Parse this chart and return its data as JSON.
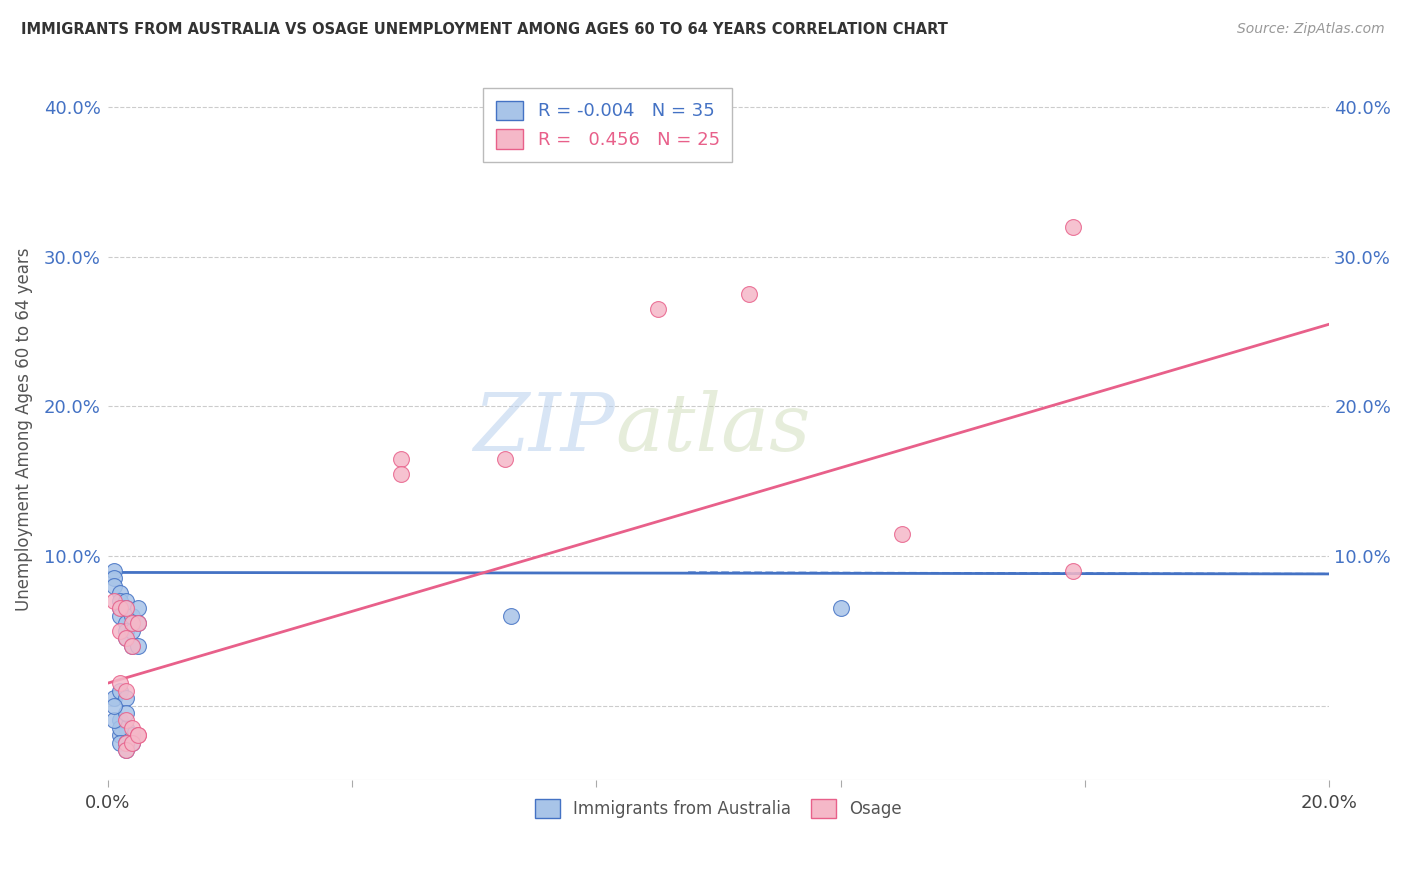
{
  "title": "IMMIGRANTS FROM AUSTRALIA VS OSAGE UNEMPLOYMENT AMONG AGES 60 TO 64 YEARS CORRELATION CHART",
  "source": "Source: ZipAtlas.com",
  "ylabel": "Unemployment Among Ages 60 to 64 years",
  "xlim": [
    0.0,
    0.2
  ],
  "ylim": [
    -0.05,
    0.42
  ],
  "xticks": [
    0.0,
    0.04,
    0.08,
    0.12,
    0.16,
    0.2
  ],
  "yticks": [
    0.0,
    0.1,
    0.2,
    0.3,
    0.4
  ],
  "xtick_labels": [
    "0.0%",
    "",
    "",
    "",
    "",
    "20.0%"
  ],
  "ytick_labels": [
    "",
    "10.0%",
    "20.0%",
    "30.0%",
    "40.0%"
  ],
  "legend_r_blue": "-0.004",
  "legend_n_blue": "35",
  "legend_r_pink": "0.456",
  "legend_n_pink": "25",
  "watermark_zip": "ZIP",
  "watermark_atlas": "atlas",
  "blue_scatter_color": "#a8c4e8",
  "blue_edge_color": "#4472c4",
  "pink_scatter_color": "#f5b8c8",
  "pink_edge_color": "#e8608a",
  "blue_line_color": "#4472c4",
  "pink_line_color": "#e8608a",
  "background_color": "#ffffff",
  "grid_color": "#cccccc",
  "blue_scatter_x": [
    0.001,
    0.001,
    0.001,
    0.002,
    0.002,
    0.002,
    0.002,
    0.003,
    0.003,
    0.003,
    0.003,
    0.003,
    0.004,
    0.004,
    0.004,
    0.005,
    0.005,
    0.005,
    0.001,
    0.002,
    0.002,
    0.003,
    0.003,
    0.004,
    0.004,
    0.002,
    0.002,
    0.001,
    0.003,
    0.001,
    0.002,
    0.003,
    0.003,
    0.066,
    0.12
  ],
  "blue_scatter_y": [
    0.09,
    0.085,
    0.08,
    0.075,
    0.07,
    0.065,
    0.06,
    0.07,
    0.065,
    0.055,
    0.05,
    0.045,
    0.06,
    0.05,
    0.04,
    0.065,
    0.055,
    0.04,
    0.005,
    0.01,
    -0.01,
    0.005,
    -0.015,
    -0.02,
    -0.025,
    -0.02,
    -0.015,
    -0.01,
    -0.005,
    0.0,
    -0.025,
    -0.025,
    -0.03,
    0.06,
    0.065
  ],
  "pink_scatter_x": [
    0.001,
    0.002,
    0.002,
    0.003,
    0.003,
    0.004,
    0.004,
    0.005,
    0.002,
    0.003,
    0.003,
    0.004,
    0.005,
    0.003,
    0.003,
    0.004,
    0.005,
    0.048,
    0.048,
    0.065,
    0.09,
    0.105,
    0.13,
    0.158,
    0.158
  ],
  "pink_scatter_y": [
    0.07,
    0.065,
    0.05,
    0.065,
    0.045,
    0.055,
    0.04,
    0.055,
    0.015,
    0.01,
    -0.01,
    -0.015,
    -0.02,
    -0.025,
    -0.03,
    -0.025,
    -0.02,
    0.165,
    0.155,
    0.165,
    0.265,
    0.275,
    0.115,
    0.09,
    0.32
  ],
  "blue_line_x": [
    0.0,
    0.2
  ],
  "blue_line_y": [
    0.089,
    0.088
  ],
  "pink_line_x": [
    0.0,
    0.2
  ],
  "pink_line_y": [
    0.015,
    0.255
  ]
}
